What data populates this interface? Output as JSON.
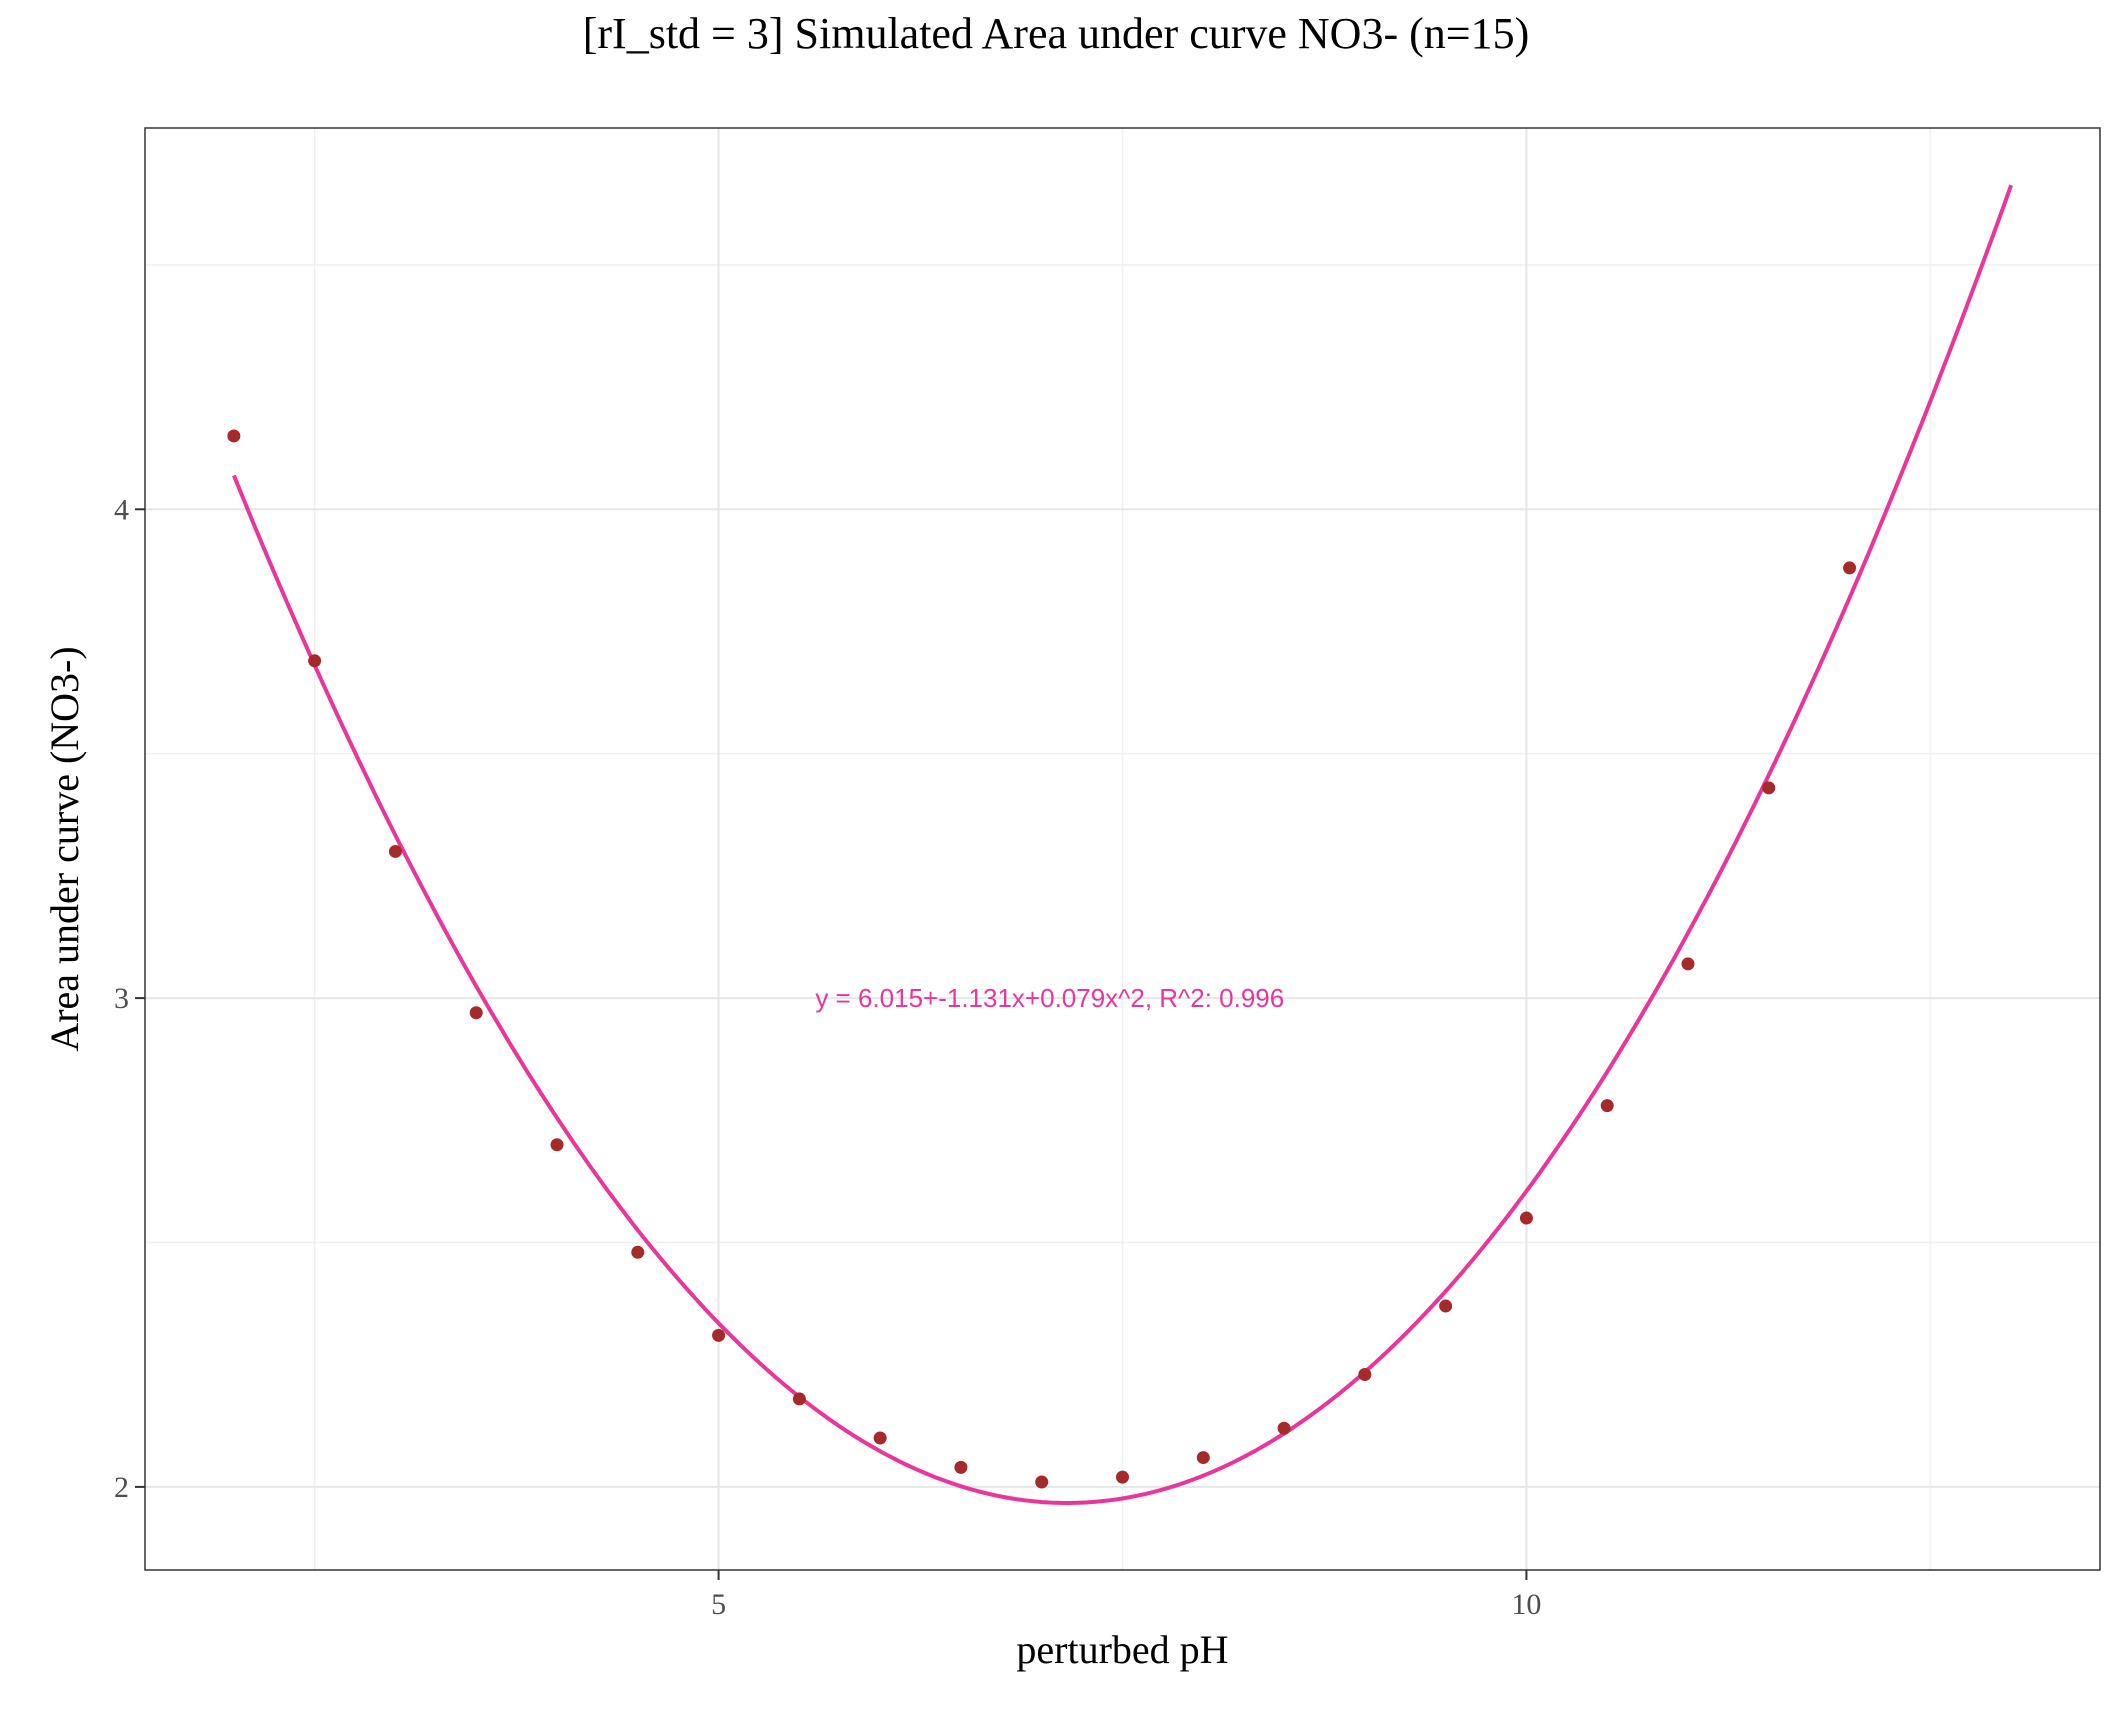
{
  "chart_data": {
    "type": "scatter",
    "title": "[rI_std = 3] Simulated Area under curve NO3- (n=15)",
    "xlabel": "perturbed pH",
    "ylabel": "Area under curve (NO3-)",
    "xlim": [
      1.45,
      13.55
    ],
    "ylim": [
      1.83,
      4.78
    ],
    "x_ticks": [
      5,
      10
    ],
    "y_ticks": [
      2,
      3,
      4
    ],
    "x_minor_grid": [
      2.5,
      7.5,
      12.5
    ],
    "y_minor_grid": [
      2.5,
      3.5,
      4.5
    ],
    "grid": true,
    "series": [
      {
        "type": "points",
        "color": "#a52a2a",
        "x": [
          2,
          2.5,
          3,
          3.5,
          4,
          4.5,
          5,
          5.5,
          6,
          6.5,
          7,
          7.5,
          8,
          8.5,
          9,
          9.5,
          10,
          10.5,
          11,
          11.5,
          12
        ],
        "y": [
          4.15,
          3.69,
          3.3,
          2.97,
          2.7,
          2.48,
          2.31,
          2.18,
          2.1,
          2.04,
          2.01,
          2.02,
          2.06,
          2.12,
          2.23,
          2.37,
          2.55,
          2.78,
          3.07,
          3.43,
          3.88
        ]
      },
      {
        "type": "fit-line",
        "color": "#e8369a",
        "equation": {
          "intercept": 6.015,
          "b1": -1.131,
          "b2": 0.079
        },
        "x_range": [
          2,
          13
        ]
      }
    ],
    "annotations": [
      {
        "text": "y = 6.015+-1.131x+0.079x^2,  R^2: 0.996",
        "x": 7.05,
        "y": 3.0,
        "color": "#e8369a"
      }
    ]
  }
}
